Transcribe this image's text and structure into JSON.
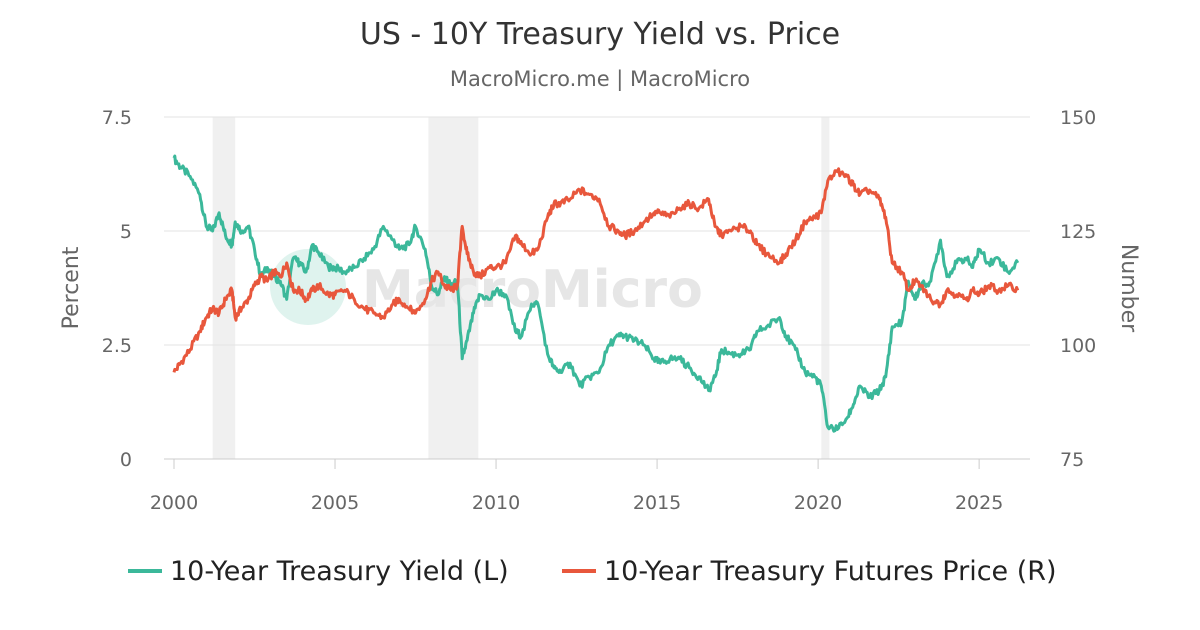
{
  "chart_data": {
    "type": "line",
    "title": "US - 10Y Treasury Yield vs. Price",
    "subtitle": "MacroMicro.me | MacroMicro",
    "watermark": "MacroMicro",
    "x_axis": {
      "min": 2000,
      "max": 2026.3,
      "ticks": [
        "2000",
        "2005",
        "2010",
        "2015",
        "2020",
        "2025"
      ]
    },
    "y_left": {
      "label": "Percent",
      "min": 0,
      "max": 7.5,
      "ticks": [
        0,
        2.5,
        5,
        7.5
      ],
      "tick_labels": [
        "0",
        "2.5",
        "5",
        "7.5"
      ]
    },
    "y_right": {
      "label": "Number",
      "min": 75,
      "max": 150,
      "ticks": [
        75,
        100,
        125,
        150
      ],
      "tick_labels": [
        "75",
        "100",
        "125",
        "150"
      ]
    },
    "recessions": [
      {
        "start": 2001.2,
        "end": 2001.9
      },
      {
        "start": 2007.9,
        "end": 2009.45
      },
      {
        "start": 2020.1,
        "end": 2020.35
      }
    ],
    "series": [
      {
        "name": "10-Year Treasury Yield (L)",
        "axis": "left",
        "color": "#3bb89a",
        "x": [
          2000.0,
          2000.2,
          2000.5,
          2000.8,
          2001.0,
          2001.2,
          2001.4,
          2001.6,
          2001.8,
          2001.9,
          2002.1,
          2002.3,
          2002.5,
          2002.7,
          2002.9,
          2003.1,
          2003.3,
          2003.5,
          2003.7,
          2003.9,
          2004.1,
          2004.3,
          2004.5,
          2004.8,
          2005.0,
          2005.3,
          2005.6,
          2005.9,
          2006.2,
          2006.5,
          2006.8,
          2007.0,
          2007.3,
          2007.5,
          2007.8,
          2008.0,
          2008.2,
          2008.4,
          2008.6,
          2008.8,
          2008.95,
          2009.1,
          2009.3,
          2009.5,
          2009.8,
          2010.0,
          2010.3,
          2010.6,
          2010.8,
          2011.1,
          2011.3,
          2011.6,
          2011.8,
          2012.0,
          2012.3,
          2012.6,
          2012.9,
          2013.2,
          2013.5,
          2013.8,
          2014.0,
          2014.3,
          2014.6,
          2014.9,
          2015.1,
          2015.4,
          2015.7,
          2016.0,
          2016.3,
          2016.6,
          2016.8,
          2017.0,
          2017.3,
          2017.6,
          2017.9,
          2018.1,
          2018.4,
          2018.8,
          2019.0,
          2019.3,
          2019.6,
          2019.9,
          2020.1,
          2020.3,
          2020.6,
          2020.9,
          2021.1,
          2021.3,
          2021.6,
          2021.9,
          2022.1,
          2022.3,
          2022.6,
          2022.8,
          2023.0,
          2023.2,
          2023.5,
          2023.8,
          2024.0,
          2024.3,
          2024.6,
          2024.8,
          2025.0,
          2025.3,
          2025.6,
          2025.9,
          2026.2
        ],
        "values": [
          6.6,
          6.4,
          6.2,
          5.8,
          5.1,
          5.0,
          5.4,
          4.9,
          4.7,
          5.2,
          5.0,
          5.1,
          4.6,
          4.0,
          4.2,
          4.0,
          3.9,
          3.5,
          4.4,
          4.3,
          4.1,
          4.7,
          4.5,
          4.2,
          4.2,
          4.1,
          4.2,
          4.4,
          4.6,
          5.1,
          4.8,
          4.6,
          4.7,
          5.1,
          4.6,
          3.8,
          3.6,
          4.0,
          3.8,
          3.9,
          2.2,
          2.6,
          3.2,
          3.6,
          3.5,
          3.7,
          3.6,
          2.8,
          2.7,
          3.4,
          3.4,
          2.3,
          2.0,
          1.9,
          2.1,
          1.6,
          1.8,
          1.9,
          2.5,
          2.7,
          2.7,
          2.6,
          2.5,
          2.2,
          2.1,
          2.2,
          2.2,
          2.0,
          1.8,
          1.5,
          1.8,
          2.4,
          2.3,
          2.3,
          2.4,
          2.8,
          2.9,
          3.1,
          2.7,
          2.4,
          1.9,
          1.8,
          1.6,
          0.7,
          0.65,
          0.9,
          1.2,
          1.6,
          1.35,
          1.5,
          1.8,
          2.9,
          3.0,
          3.9,
          3.5,
          3.8,
          3.9,
          4.8,
          4.0,
          4.3,
          4.4,
          4.2,
          4.6,
          4.3,
          4.4,
          4.1,
          4.3
        ]
      },
      {
        "name": "10-Year Treasury Futures Price (R)",
        "axis": "right",
        "color": "#e8573c",
        "x": [
          2000.0,
          2000.2,
          2000.5,
          2000.8,
          2001.0,
          2001.2,
          2001.4,
          2001.6,
          2001.8,
          2001.9,
          2002.1,
          2002.3,
          2002.5,
          2002.7,
          2002.9,
          2003.1,
          2003.3,
          2003.5,
          2003.7,
          2003.9,
          2004.1,
          2004.3,
          2004.5,
          2004.8,
          2005.0,
          2005.3,
          2005.6,
          2005.9,
          2006.2,
          2006.5,
          2006.8,
          2007.0,
          2007.3,
          2007.5,
          2007.8,
          2008.0,
          2008.2,
          2008.4,
          2008.6,
          2008.8,
          2008.95,
          2009.1,
          2009.3,
          2009.5,
          2009.8,
          2010.0,
          2010.3,
          2010.6,
          2010.8,
          2011.1,
          2011.3,
          2011.6,
          2011.8,
          2012.0,
          2012.3,
          2012.6,
          2012.9,
          2013.2,
          2013.5,
          2013.8,
          2014.0,
          2014.3,
          2014.6,
          2014.9,
          2015.1,
          2015.4,
          2015.7,
          2016.0,
          2016.3,
          2016.6,
          2016.8,
          2017.0,
          2017.3,
          2017.6,
          2017.9,
          2018.1,
          2018.4,
          2018.8,
          2019.0,
          2019.3,
          2019.6,
          2019.9,
          2020.1,
          2020.3,
          2020.6,
          2020.9,
          2021.1,
          2021.3,
          2021.6,
          2021.9,
          2022.1,
          2022.3,
          2022.6,
          2022.8,
          2023.0,
          2023.2,
          2023.5,
          2023.8,
          2024.0,
          2024.3,
          2024.6,
          2024.8,
          2025.0,
          2025.3,
          2025.6,
          2025.9,
          2026.2
        ],
        "values": [
          94,
          96,
          99,
          103,
          106,
          108,
          107,
          110,
          112,
          106,
          108,
          110,
          113,
          115,
          114,
          116,
          115,
          118,
          112,
          112,
          110,
          112,
          113,
          111,
          111,
          112,
          110,
          108,
          107,
          106,
          109,
          110,
          108,
          107,
          110,
          114,
          116,
          113,
          112,
          113,
          126,
          120,
          116,
          115,
          117,
          117,
          118,
          124,
          122,
          120,
          121,
          128,
          131,
          131,
          132,
          134,
          133,
          132,
          126,
          125,
          124,
          125,
          127,
          129,
          129,
          128,
          130,
          131,
          130,
          132,
          126,
          124,
          125,
          126,
          125,
          122,
          120,
          118,
          120,
          123,
          127,
          128,
          129,
          136,
          138,
          137,
          135,
          133,
          134,
          132,
          128,
          118,
          116,
          112,
          114,
          113,
          110,
          109,
          112,
          111,
          110,
          112,
          111,
          113,
          112,
          113,
          112
        ]
      }
    ],
    "legend": [
      "10-Year Treasury Yield (L)",
      "10-Year Treasury Futures Price (R)"
    ]
  }
}
